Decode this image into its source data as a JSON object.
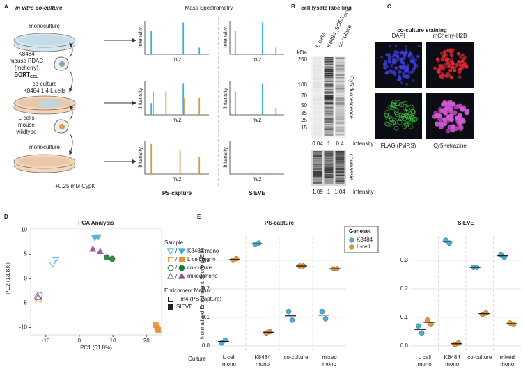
{
  "panel_labels": [
    "A",
    "B",
    "C",
    "D",
    "E"
  ],
  "panel_a": {
    "title": "in vitro co-culture",
    "dishes": [
      "monoculture",
      "co-culture\nK8484 1:4 L cells",
      "monoculture"
    ],
    "cells": [
      {
        "lines": "K8484\nmouse PDAC\n(mcherry)",
        "gene": "SORT",
        "subscript": "GCU"
      },
      {
        "lines": "L-cells\nmouse\nwildtype"
      }
    ],
    "treatment": "+0.25 mM CypK",
    "ms_title": "Mass Spectrometry",
    "y_label": "Intensity",
    "x_label": "m/z",
    "methods": [
      "PS-capture",
      "SIEVE"
    ]
  },
  "panel_b": {
    "title": "cell lysate labelling",
    "lanes": [
      {
        "text": "L cells"
      },
      {
        "text": "K8484_SORT",
        "sub": "GCU"
      },
      {
        "text": "co-culture"
      }
    ],
    "unit": "kDa",
    "markers": [
      250,
      100,
      70,
      50,
      35,
      25,
      15
    ],
    "cy5_label": "Cy5 fluorescence",
    "coomassie_label": "coomassie",
    "cy5_intensity": [
      0.04,
      1,
      0.4
    ],
    "coomassie_intensity": [
      1.09,
      1,
      1.04
    ],
    "intensity_label": "intensity"
  },
  "panel_c": {
    "title": "co-culture staining",
    "channels": [
      "DAPI",
      "mCherry-H2B",
      "FLAG (PylRS)",
      "Cy5-tetrazine"
    ]
  },
  "chart_data": [
    {
      "type": "scatter",
      "title": "PCA Analysis",
      "x_label": "PC1 (61.8%)",
      "y_label": "PC2 (13.8%)",
      "xlim": [
        -14.5,
        24.5
      ],
      "ylim": [
        -11.5,
        11.8
      ],
      "xticks": [
        -10,
        0,
        10,
        20
      ],
      "yticks": [
        -10,
        -5,
        0,
        5,
        10
      ],
      "legend_title": "Sample",
      "legend_separator": "/",
      "series": [
        {
          "name": "K8484 mono",
          "color": "#3fb0d9",
          "marker": "triangle-down",
          "x": [
            -8,
            -7,
            -12.2,
            4.6,
            5.6
          ],
          "values": [
            3,
            4,
            -3.9,
            8.4,
            8.6
          ],
          "filled": [
            false,
            false,
            false,
            true,
            true
          ]
        },
        {
          "name": "L cell mono",
          "color": "#e8932f",
          "marker": "square",
          "x": [
            -12.3,
            -12,
            22.8,
            23.2,
            23.5
          ],
          "values": [
            -4.5,
            -4.1,
            -9.5,
            -10.1,
            -10.5
          ],
          "filled": [
            false,
            false,
            true,
            true,
            true
          ]
        },
        {
          "name": "co-culture",
          "color": "#1f7a3a",
          "marker": "circle",
          "x": [
            -12,
            -11.8,
            8.2,
            9.8
          ],
          "values": [
            -3.6,
            -3.3,
            4.4,
            4.1
          ],
          "filled": [
            false,
            false,
            true,
            true
          ]
        },
        {
          "name": "mixed mono",
          "color": "#8e4a93",
          "marker": "triangle-up",
          "x": [
            -12.5,
            -12.3,
            4,
            6.2
          ],
          "values": [
            -3.5,
            -3.8,
            6.1,
            5.6
          ],
          "filled": [
            false,
            false,
            true,
            true
          ]
        }
      ],
      "method_legend": {
        "title": "Enrichment Method",
        "items": [
          {
            "name": "Tim4 (PS-capture)",
            "filled": false
          },
          {
            "name": "SIEVE",
            "filled": true
          }
        ]
      }
    },
    {
      "type": "dot",
      "title": "PS-capture",
      "y_label": "Normalised Enrichment Score (NES)",
      "x_label": "Culture",
      "categories": [
        "L cell\nmono",
        "K8484\nmono",
        "co-culture",
        "mixed\nmono"
      ],
      "ylim": [
        -0.02,
        0.385
      ],
      "yticks": [
        {
          "value": 0,
          "label": "0.0"
        },
        0.1,
        0.2,
        0.3
      ],
      "grid": true,
      "legend_title": "Geneset",
      "series": [
        {
          "name": "K8484",
          "color": "#3fb0d9",
          "values": [
            [
              0.01,
              0.02
            ],
            [
              0.355,
              0.36
            ],
            [
              0.12,
              0.09
            ],
            [
              0.12,
              0.095
            ]
          ]
        },
        {
          "name": "L-cell",
          "color": "#e8932f",
          "values": [
            [
              0.3,
              0.305
            ],
            [
              0.045,
              0.05
            ],
            [
              0.28,
              0.28
            ],
            [
              0.27,
              0.27
            ]
          ]
        }
      ]
    },
    {
      "type": "dot",
      "title": "SIEVE",
      "categories": [
        "L cell\nmono",
        "K8484\nmono",
        "co-culture",
        "mixed\nmono"
      ],
      "ylim": [
        -0.02,
        0.385
      ],
      "yticks": [
        {
          "value": 0,
          "label": "0.0"
        },
        0.1,
        0.2,
        0.3
      ],
      "grid": true,
      "series": [
        {
          "name": "K8484",
          "color": "#3fb0d9",
          "values": [
            [
              0.07,
              0.045
            ],
            [
              0.37,
              0.36
            ],
            [
              0.275,
              0.275
            ],
            [
              0.32,
              0.31
            ]
          ]
        },
        {
          "name": "L-cell",
          "color": "#e8932f",
          "values": [
            [
              0.09,
              0.075
            ],
            [
              0.005,
              0.01
            ],
            [
              0.11,
              0.115
            ],
            [
              0.08,
              0.075
            ]
          ]
        }
      ]
    }
  ]
}
